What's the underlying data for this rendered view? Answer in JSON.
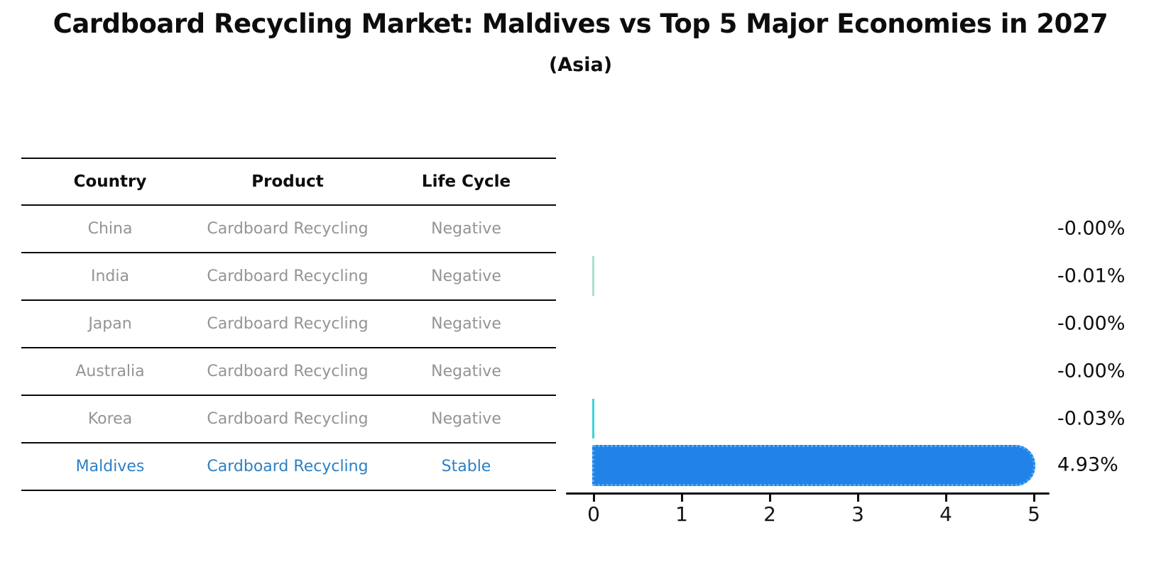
{
  "title": "Cardboard Recycling Market: Maldives vs Top 5 Major Economies in 2027",
  "subtitle": "(Asia)",
  "table": {
    "headers": {
      "country": "Country",
      "product": "Product",
      "life_cycle": "Life Cycle"
    },
    "rows": [
      {
        "country": "China",
        "product": "Cardboard Recycling",
        "life_cycle": "Negative"
      },
      {
        "country": "India",
        "product": "Cardboard Recycling",
        "life_cycle": "Negative"
      },
      {
        "country": "Japan",
        "product": "Cardboard Recycling",
        "life_cycle": "Negative"
      },
      {
        "country": "Australia",
        "product": "Cardboard Recycling",
        "life_cycle": "Negative"
      },
      {
        "country": "Korea",
        "product": "Cardboard Recycling",
        "life_cycle": "Negative"
      },
      {
        "country": "Maldives",
        "product": "Cardboard Recycling",
        "life_cycle": "Stable"
      }
    ],
    "highlighted_row": "Maldives"
  },
  "chart_data": {
    "type": "bar",
    "orientation": "horizontal",
    "title": "Cardboard Recycling Market: Maldives vs Top 5 Major Economies in 2027 (Asia)",
    "categories": [
      "China",
      "India",
      "Japan",
      "Australia",
      "Korea",
      "Maldives"
    ],
    "values": [
      -0.0,
      -0.01,
      -0.0,
      -0.0,
      -0.03,
      4.93
    ],
    "value_labels": [
      "-0.00%",
      "-0.01%",
      "-0.00%",
      "-0.00%",
      "-0.03%",
      "4.93%"
    ],
    "bar_colors": [
      "#aadfd2",
      "#aadfd2",
      "#aadfd2",
      "#aadfd2",
      "#3fd3da",
      "#2182e8"
    ],
    "xlabel": "",
    "ylabel": "",
    "xlim": [
      0,
      5
    ],
    "x_ticks": [
      "0",
      "1",
      "2",
      "3",
      "4",
      "5"
    ],
    "grid": false,
    "legend": false
  },
  "colors": {
    "bar_fill": "#2182e8",
    "bar_edge": "#58aef0",
    "hairline_korea": "#3fd3da",
    "hairline_india": "#aadfd2",
    "highlight_text": "#2e80c4",
    "muted_text": "#949494",
    "axis": "#0d0d0d"
  }
}
